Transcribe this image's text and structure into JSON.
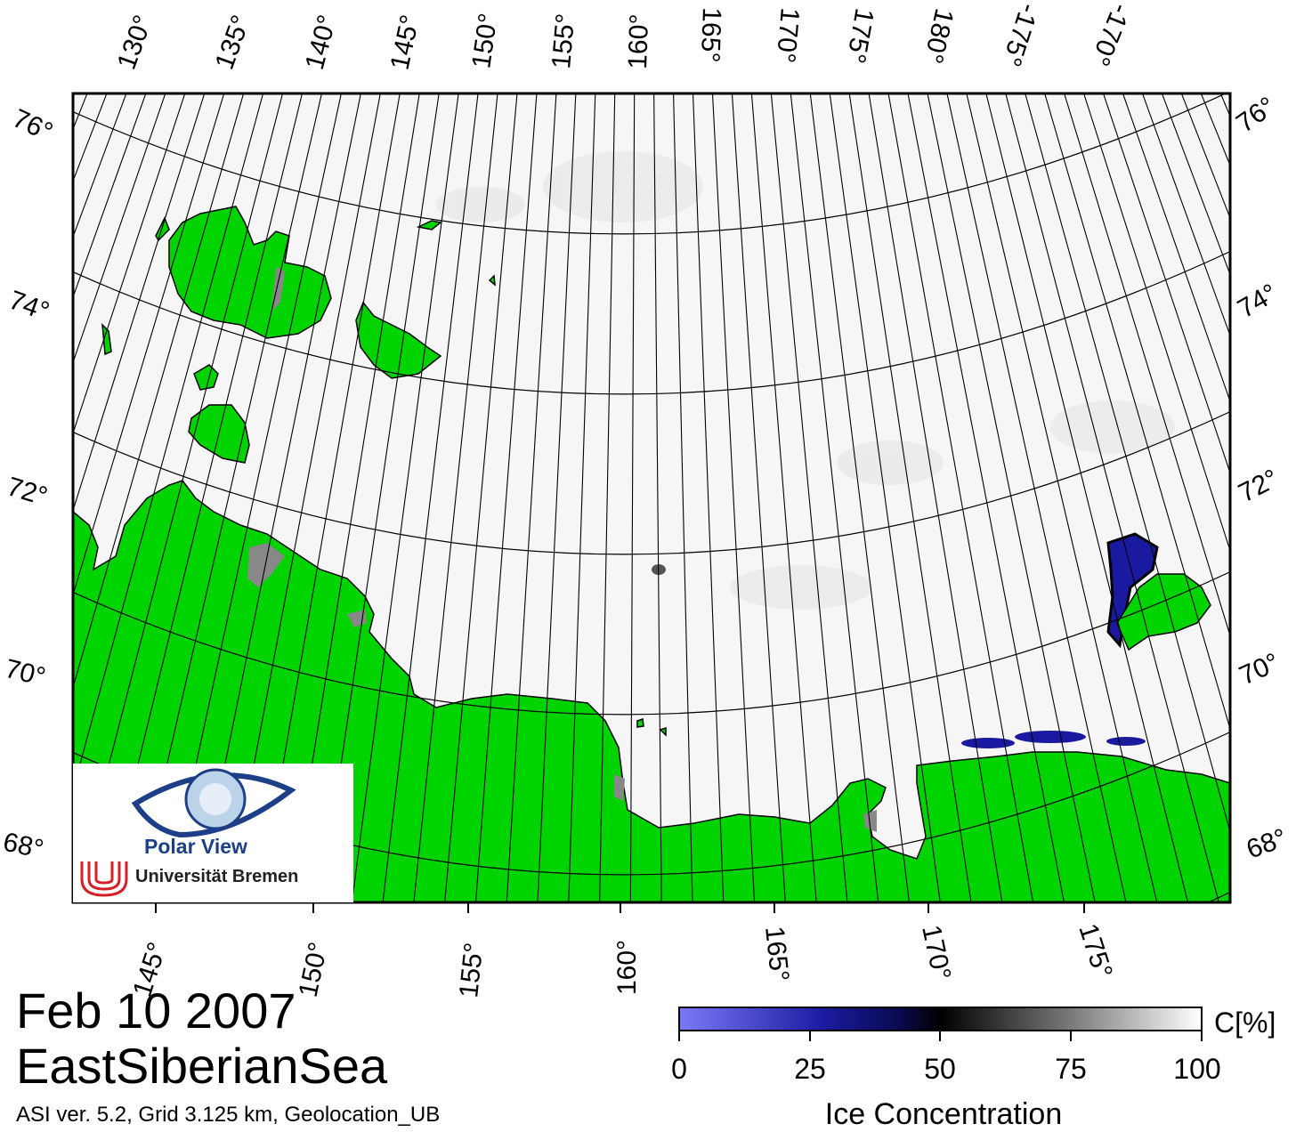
{
  "map": {
    "top_lon_labels": [
      "130°",
      "135°",
      "140°",
      "145°",
      "150°",
      "155°",
      "160°",
      "165°",
      "170°",
      "175°",
      "180°",
      "-175°",
      "-170°"
    ],
    "bottom_lon_labels": [
      "145°",
      "150°",
      "155°",
      "160°",
      "165°",
      "170°",
      "175°"
    ],
    "lat_labels": [
      "76°",
      "74°",
      "72°",
      "70°",
      "68°"
    ]
  },
  "title": {
    "date": "Feb 10 2007",
    "region": "EastSiberianSea"
  },
  "footer": {
    "note": "ASI ver. 5.2,  Grid 3.125 km, Geolocation_UB"
  },
  "legend": {
    "title": "Ice Concentration",
    "unit": "C[%]",
    "ticks": [
      "0",
      "25",
      "50",
      "75",
      "100"
    ],
    "gradient_colors": [
      "#7a7af7",
      "#1a1aa0",
      "#0a0a50",
      "#000000",
      "#7a7a7a",
      "#ffffff"
    ]
  },
  "logo": {
    "name": "Polar View",
    "institution": "Universität Bremen"
  },
  "colors": {
    "land": "#00d400",
    "ice": "#f6f6f6",
    "coast_grey": "#888888",
    "grid": "#000000"
  }
}
